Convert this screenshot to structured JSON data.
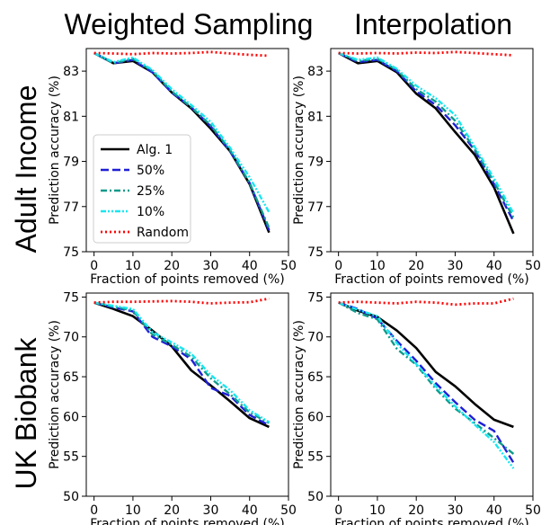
{
  "column_titles": [
    "Weighted Sampling",
    "Interpolation"
  ],
  "row_titles": [
    "Adult Income",
    "UK Biobank"
  ],
  "legend": [
    "Alg. 1",
    "50%",
    "25%",
    "10%",
    "Random"
  ],
  "series_styles": [
    {
      "color": "#000000",
      "dash": "none",
      "width": 2.6
    },
    {
      "color": "#1f1fd6",
      "dash": "9,4",
      "width": 2.4
    },
    {
      "color": "#109a8a",
      "dash": "7,3,2,3",
      "width": 2.4
    },
    {
      "color": "#19e6f0",
      "dash": "6,2,2,2,2,2",
      "width": 2.4
    },
    {
      "color": "#ff0000",
      "dash": "2,3",
      "width": 2.8
    }
  ],
  "chart_data": [
    {
      "type": "line",
      "xlabel": "Fraction of points removed (%)",
      "ylabel": "Prediction accuracy (%)",
      "xlim": [
        -2,
        50
      ],
      "ylim": [
        75,
        84
      ],
      "xticks": [
        0,
        10,
        20,
        30,
        40,
        50
      ],
      "yticks": [
        75,
        77,
        79,
        81,
        83
      ],
      "x": [
        0,
        5,
        10,
        15,
        20,
        25,
        30,
        35,
        40,
        45
      ],
      "series": [
        {
          "name": "Alg. 1",
          "values": [
            83.8,
            83.35,
            83.45,
            82.95,
            82.05,
            81.35,
            80.45,
            79.45,
            78.0,
            75.85
          ]
        },
        {
          "name": "50%",
          "values": [
            83.8,
            83.35,
            83.5,
            82.95,
            82.05,
            81.4,
            80.55,
            79.45,
            78.05,
            75.95
          ]
        },
        {
          "name": "25%",
          "values": [
            83.8,
            83.35,
            83.55,
            83.0,
            82.1,
            81.4,
            80.6,
            79.5,
            78.05,
            76.05
          ]
        },
        {
          "name": "10%",
          "values": [
            83.8,
            83.4,
            83.6,
            83.05,
            82.2,
            81.5,
            80.75,
            79.6,
            78.3,
            76.75
          ]
        },
        {
          "name": "Random",
          "values": [
            83.8,
            83.78,
            83.75,
            83.8,
            83.78,
            83.8,
            83.85,
            83.78,
            83.72,
            83.68
          ]
        }
      ]
    },
    {
      "type": "line",
      "xlabel": "Fraction of points removed (%)",
      "ylabel": "Prediction accuracy (%)",
      "xlim": [
        -2,
        50
      ],
      "ylim": [
        75,
        84
      ],
      "xticks": [
        0,
        10,
        20,
        30,
        40,
        50
      ],
      "yticks": [
        75,
        77,
        79,
        81,
        83
      ],
      "x": [
        0,
        5,
        10,
        15,
        20,
        25,
        30,
        35,
        40,
        45
      ],
      "series": [
        {
          "name": "Alg. 1",
          "values": [
            83.8,
            83.35,
            83.45,
            82.95,
            82.0,
            81.35,
            80.3,
            79.3,
            77.85,
            75.8
          ]
        },
        {
          "name": "50%",
          "values": [
            83.8,
            83.4,
            83.5,
            83.0,
            82.1,
            81.5,
            80.6,
            79.5,
            78.0,
            76.35
          ]
        },
        {
          "name": "25%",
          "values": [
            83.8,
            83.45,
            83.55,
            83.05,
            82.2,
            81.65,
            80.8,
            79.55,
            78.1,
            76.5
          ]
        },
        {
          "name": "10%",
          "values": [
            83.8,
            83.5,
            83.6,
            83.1,
            82.35,
            81.8,
            81.05,
            79.65,
            78.25,
            76.7
          ]
        },
        {
          "name": "Random",
          "values": [
            83.8,
            83.78,
            83.8,
            83.78,
            83.82,
            83.8,
            83.85,
            83.8,
            83.75,
            83.7
          ]
        }
      ]
    },
    {
      "type": "line",
      "xlabel": "Fraction of points removed (%)",
      "ylabel": "Prediction accuracy (%)",
      "xlim": [
        -2,
        50
      ],
      "ylim": [
        50,
        75.5
      ],
      "xticks": [
        0,
        10,
        20,
        30,
        40,
        50
      ],
      "yticks": [
        50,
        55,
        60,
        65,
        70,
        75
      ],
      "x": [
        0,
        5,
        10,
        15,
        20,
        25,
        30,
        35,
        40,
        45
      ],
      "series": [
        {
          "name": "Alg. 1",
          "values": [
            74.3,
            73.5,
            72.6,
            70.8,
            68.8,
            65.8,
            63.9,
            61.9,
            59.8,
            58.7
          ]
        },
        {
          "name": "50%",
          "values": [
            74.3,
            73.7,
            73.2,
            70.0,
            68.8,
            67.2,
            63.6,
            62.6,
            60.2,
            58.9
          ]
        },
        {
          "name": "25%",
          "values": [
            74.3,
            73.8,
            73.3,
            70.3,
            69.0,
            67.5,
            64.8,
            62.8,
            60.5,
            59.2
          ]
        },
        {
          "name": "10%",
          "values": [
            74.3,
            73.9,
            73.5,
            70.6,
            69.3,
            67.9,
            65.2,
            63.3,
            60.8,
            59.3
          ]
        },
        {
          "name": "Random",
          "values": [
            74.3,
            74.4,
            74.4,
            74.45,
            74.5,
            74.4,
            74.2,
            74.3,
            74.35,
            74.8
          ]
        }
      ]
    },
    {
      "type": "line",
      "xlabel": "Fraction of points removed (%)",
      "ylabel": "Prediction accuracy (%)",
      "xlim": [
        -2,
        50
      ],
      "ylim": [
        50,
        75.5
      ],
      "xticks": [
        0,
        10,
        20,
        30,
        40,
        50
      ],
      "yticks": [
        50,
        55,
        60,
        65,
        70,
        75
      ],
      "x": [
        0,
        5,
        10,
        15,
        20,
        25,
        30,
        35,
        40,
        45
      ],
      "series": [
        {
          "name": "Alg. 1",
          "values": [
            74.3,
            73.3,
            72.5,
            70.8,
            68.6,
            65.6,
            63.8,
            61.6,
            59.6,
            58.7
          ]
        },
        {
          "name": "50%",
          "values": [
            74.3,
            73.5,
            72.3,
            69.5,
            67.0,
            64.2,
            61.8,
            59.6,
            58.2,
            54.2
          ]
        },
        {
          "name": "25%",
          "values": [
            74.3,
            73.0,
            72.2,
            68.5,
            66.5,
            63.5,
            61.0,
            59.2,
            57.3,
            55.3
          ]
        },
        {
          "name": "10%",
          "values": [
            74.3,
            73.4,
            72.6,
            69.2,
            66.6,
            63.8,
            61.3,
            59.0,
            56.8,
            53.5
          ]
        },
        {
          "name": "Random",
          "values": [
            74.3,
            74.4,
            74.3,
            74.2,
            74.4,
            74.3,
            74.05,
            74.2,
            74.2,
            74.8
          ]
        }
      ]
    }
  ]
}
